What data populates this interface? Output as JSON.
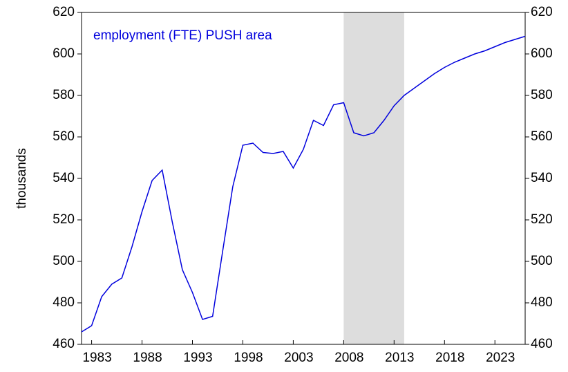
{
  "chart_data": {
    "type": "line",
    "annotation": "employment (FTE) PUSH area",
    "ylabel": "thousands",
    "x": [
      1982,
      1983,
      1984,
      1985,
      1986,
      1987,
      1988,
      1989,
      1990,
      1991,
      1992,
      1993,
      1994,
      1995,
      1996,
      1997,
      1998,
      1999,
      2000,
      2001,
      2002,
      2003,
      2004,
      2005,
      2006,
      2007,
      2008,
      2009,
      2010,
      2011,
      2012,
      2013,
      2014,
      2015,
      2016,
      2017,
      2018,
      2019,
      2020,
      2021,
      2022,
      2023,
      2024,
      2025,
      2026
    ],
    "values": [
      466,
      469,
      483,
      489,
      492,
      507,
      524,
      539,
      544,
      519,
      496,
      485,
      472,
      473.5,
      505,
      536,
      556,
      557,
      552.5,
      552,
      553,
      545,
      554,
      568,
      565.5,
      575.5,
      576.5,
      562,
      560.5,
      562,
      568,
      575,
      580,
      583.5,
      587,
      590.5,
      593.5,
      596,
      598,
      600,
      601.5,
      603.5,
      605.5,
      607,
      608.5
    ],
    "color": "#0000dd",
    "shade": [
      2008,
      2014
    ],
    "shade_color": "#dddddd",
    "xlim": [
      1982,
      2026
    ],
    "xticks": [
      1983,
      1988,
      1993,
      1998,
      2003,
      2008,
      2013,
      2018,
      2023
    ],
    "ylim": [
      460,
      620
    ],
    "yticks": [
      460,
      480,
      500,
      520,
      540,
      560,
      580,
      600,
      620
    ],
    "right_axis_labels": true
  }
}
